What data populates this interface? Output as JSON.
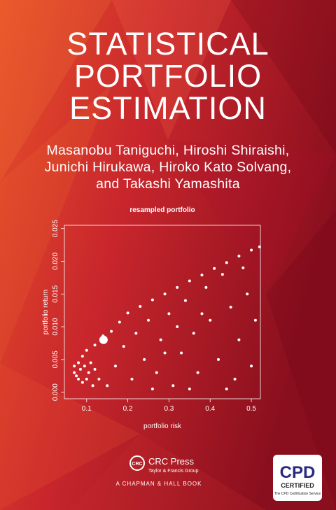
{
  "cover": {
    "title_lines": [
      "STATISTICAL",
      "PORTFOLIO",
      "ESTIMATION"
    ],
    "author_lines": [
      "Masanobu Taniguchi, Hiroshi Shiraishi,",
      "Junichi Hirukawa, Hiroko Kato Solvang,",
      "and Takashi Yamashita"
    ],
    "publisher": {
      "name": "CRC Press",
      "group": "Taylor & Francis Group",
      "imprint": "A CHAPMAN & HALL BOOK",
      "logo": "CRC"
    },
    "badge": {
      "mark": "CPD",
      "word": "CERTIFIED",
      "service": "The CPD Certification Service"
    }
  },
  "chart_data": {
    "type": "scatter",
    "title": "resampled portfolio",
    "xlabel": "portfolio risk",
    "ylabel": "portfolio return",
    "color": "#ffffff",
    "xlim": [
      0.046,
      0.522
    ],
    "ylim": [
      -0.001,
      0.0255
    ],
    "xticks": [
      0.1,
      0.2,
      0.3,
      0.4,
      0.5
    ],
    "yticks": [
      {
        "value": 0,
        "label": "0.000"
      },
      {
        "value": 0.005,
        "label": "0.005"
      },
      {
        "value": 0.01,
        "label": "0.010"
      },
      {
        "value": 0.015,
        "label": "0.015"
      },
      {
        "value": 0.02,
        "label": "0.020"
      },
      {
        "value": 0.025,
        "label": "0.025"
      }
    ],
    "x": [
      0.08,
      0.09,
      0.1,
      0.12,
      0.14,
      0.16,
      0.18,
      0.2,
      0.23,
      0.26,
      0.29,
      0.32,
      0.35,
      0.38,
      0.41,
      0.44,
      0.47,
      0.5,
      0.52,
      0.07,
      0.075,
      0.08,
      0.085,
      0.09,
      0.095,
      0.1,
      0.105,
      0.11,
      0.115,
      0.12,
      0.13,
      0.07,
      0.08,
      0.15,
      0.17,
      0.19,
      0.21,
      0.22,
      0.24,
      0.25,
      0.27,
      0.28,
      0.3,
      0.31,
      0.33,
      0.34,
      0.36,
      0.37,
      0.39,
      0.4,
      0.42,
      0.43,
      0.45,
      0.46,
      0.47,
      0.48,
      0.49,
      0.5,
      0.51,
      0.44,
      0.35,
      0.26,
      0.38,
      0.32,
      0.29
    ],
    "y": [
      0.0045,
      0.0055,
      0.0064,
      0.0072,
      0.0086,
      0.0093,
      0.0107,
      0.0121,
      0.0131,
      0.0141,
      0.015,
      0.016,
      0.017,
      0.0179,
      0.0189,
      0.0198,
      0.0208,
      0.0217,
      0.0222,
      0.003,
      0.0025,
      0.002,
      0.0035,
      0.0015,
      0.004,
      0.002,
      0.003,
      0.0045,
      0.001,
      0.0035,
      0.002,
      0.004,
      0.0045,
      0.001,
      0.004,
      0.007,
      0.002,
      0.009,
      0.005,
      0.011,
      0.003,
      0.008,
      0.012,
      0.001,
      0.006,
      0.014,
      0.009,
      0.003,
      0.016,
      0.011,
      0.005,
      0.018,
      0.013,
      0.002,
      0.008,
      0.019,
      0.015,
      0.004,
      0.011,
      0.0005,
      0.0005,
      0.0005,
      0.012,
      0.01,
      0.006
    ],
    "highlight": {
      "x": 0.141,
      "y": 0.008
    }
  }
}
